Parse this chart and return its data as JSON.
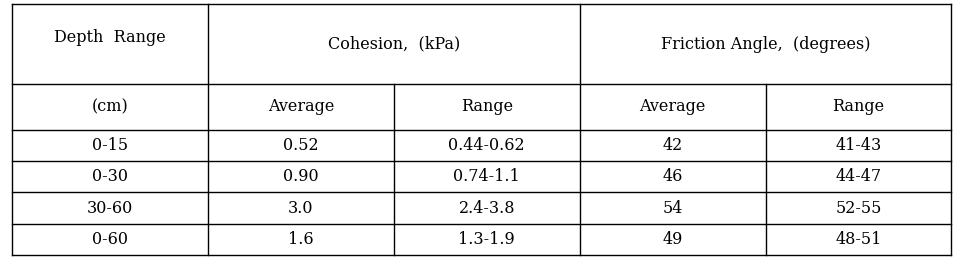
{
  "col_headers_row1_col0": "Depth  Range",
  "col_headers_row1_col0_line2": "(cm)",
  "col_headers_row1_cohesion": "Cohesion,  (kPa)",
  "col_headers_row1_friction": "Friction Angle,  (degrees)",
  "col_headers_row2": [
    "Average",
    "Range",
    "Average",
    "Range"
  ],
  "rows": [
    [
      "0-15",
      "0.52",
      "0.44-0.62",
      "42",
      "41-43"
    ],
    [
      "0-30",
      "0.90",
      "0.74-1.1",
      "46",
      "44-47"
    ],
    [
      "30-60",
      "3.0",
      "2.4-3.8",
      "54",
      "52-55"
    ],
    [
      "0-60",
      "1.6",
      "1.3-1.9",
      "49",
      "48-51"
    ]
  ],
  "background_color": "#ffffff",
  "text_color": "#000000",
  "border_color": "#000000",
  "font_size": 11.5
}
